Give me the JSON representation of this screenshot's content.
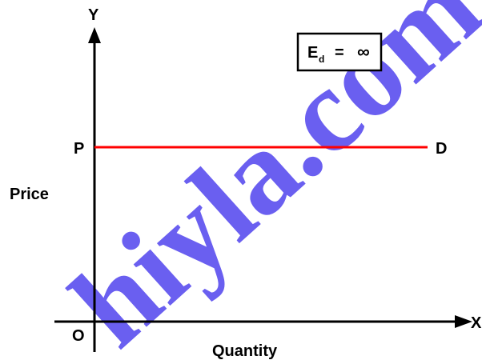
{
  "diagram": {
    "axis_y_label": "Y",
    "axis_x_label": "X",
    "origin_label": "O",
    "price_point_label": "P",
    "demand_label": "D",
    "vertical_axis_title": "Price",
    "horizontal_axis_title": "Quantity",
    "elasticity": {
      "symbol": "E",
      "subscript": "d",
      "equals": "=",
      "value": "∞"
    }
  },
  "watermark": {
    "text": "hiyla.com"
  },
  "colors": {
    "demand_line": "#ff0000",
    "axes": "#000000",
    "watermark": "#6a5ff0"
  }
}
